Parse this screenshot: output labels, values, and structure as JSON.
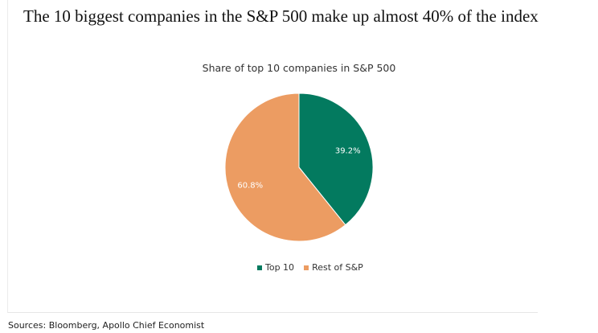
{
  "headline": "The 10 biggest companies in the S&P 500 make up almost 40% of the index",
  "source": "Sources: Bloomberg, Apollo Chief Economist",
  "chart_data": {
    "type": "pie",
    "title": "Share of top 10 companies in S&P 500",
    "slices": [
      {
        "name": "Top 10",
        "value": 39.2,
        "label": "39.2%",
        "color": "#037a5f"
      },
      {
        "name": "Rest of S&P",
        "value": 60.8,
        "label": "60.8%",
        "color": "#ec9c62"
      }
    ],
    "legend_position": "bottom"
  }
}
